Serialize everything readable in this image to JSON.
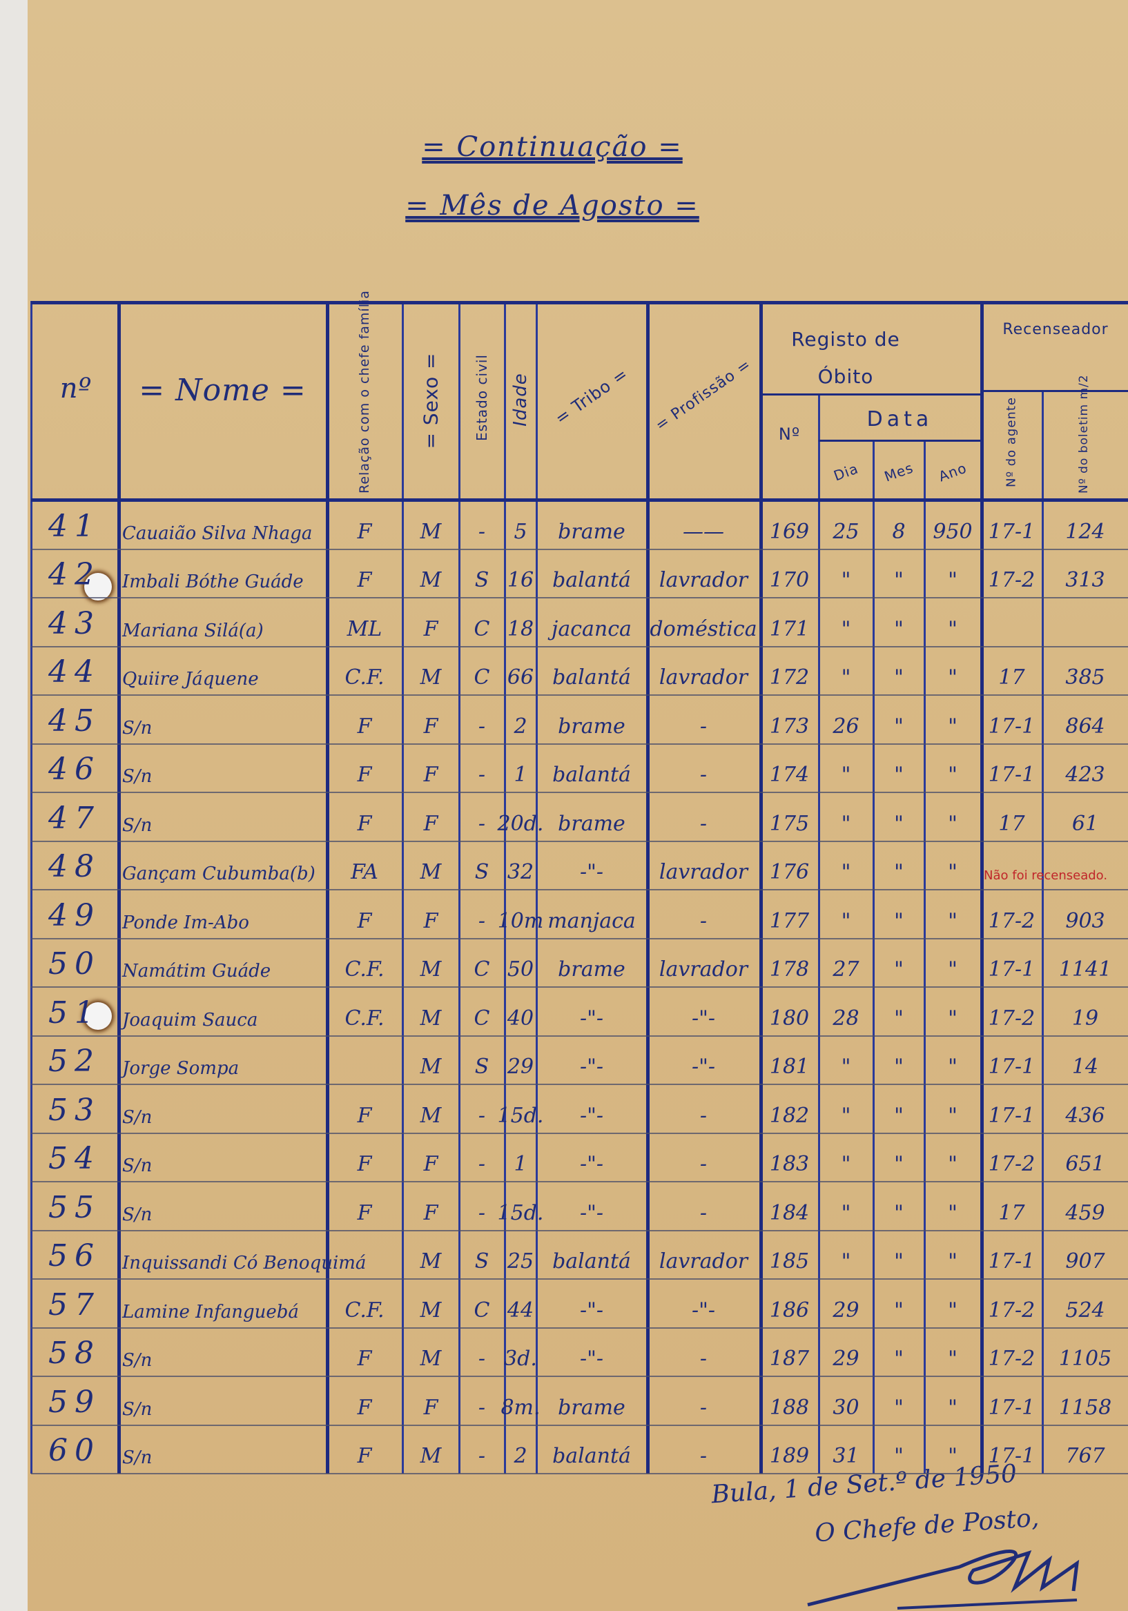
{
  "title": "= Continuação =",
  "subtitle": "= Mês de Agosto =",
  "headers": {
    "numero": "nº",
    "nome": "= Nome =",
    "relacao": "Relação com o chefe família",
    "sexo": "= Sexo =",
    "estado_civil": "Estado civil",
    "idade": "Idade",
    "tribo": "= Tribo =",
    "profissao": "= Profissão =",
    "registo_obito": "Registo de Óbito",
    "obito_numero": "Nº",
    "data": "Data",
    "dia": "Dia",
    "mes": "Mes",
    "ano": "Ano",
    "recenseador": "Recenseador",
    "agente": "Nº do agente",
    "boletim": "Nº do boletim m/2"
  },
  "rows": [
    {
      "n": "41",
      "cells": [
        "Cauaião Silva Nhaga",
        "F",
        "M",
        "-",
        "5",
        "brame",
        "——",
        "169",
        "25",
        "8",
        "950",
        "17-1",
        "124"
      ]
    },
    {
      "n": "42",
      "cells": [
        "Imbali Bóthe Guáde",
        "F",
        "M",
        "S",
        "16",
        "balantá",
        "lavrador",
        "170",
        "\"",
        "\"",
        "\"",
        "17-2",
        "313"
      ]
    },
    {
      "n": "43",
      "cells": [
        "Mariana Silá(a)",
        "ML",
        "F",
        "C",
        "18",
        "jacanca",
        "doméstica",
        "171",
        "\"",
        "\"",
        "\"",
        "",
        ""
      ]
    },
    {
      "n": "44",
      "cells": [
        "Quiire Jáquene",
        "C.F.",
        "M",
        "C",
        "66",
        "balantá",
        "lavrador",
        "172",
        "\"",
        "\"",
        "\"",
        "17",
        "385"
      ]
    },
    {
      "n": "45",
      "cells": [
        "S/n",
        "F",
        "F",
        "-",
        "2",
        "brame",
        "-",
        "173",
        "26",
        "\"",
        "\"",
        "17-1",
        "864"
      ]
    },
    {
      "n": "46",
      "cells": [
        "S/n",
        "F",
        "F",
        "-",
        "1",
        "balantá",
        "-",
        "174",
        "\"",
        "\"",
        "\"",
        "17-1",
        "423"
      ]
    },
    {
      "n": "47",
      "cells": [
        "S/n",
        "F",
        "F",
        "-",
        "20d.",
        "brame",
        "-",
        "175",
        "\"",
        "\"",
        "\"",
        "17",
        "61"
      ]
    },
    {
      "n": "48",
      "cells": [
        "Gançam Cubumba(b)",
        "FA",
        "M",
        "S",
        "32",
        "-\"-",
        "lavrador",
        "176",
        "\"",
        "\"",
        "\"",
        "",
        ""
      ],
      "note": "Não foi recenseado."
    },
    {
      "n": "49",
      "cells": [
        "Ponde Im-Abo",
        "F",
        "F",
        "-",
        "10m",
        "manjaca",
        "-",
        "177",
        "\"",
        "\"",
        "\"",
        "17-2",
        "903"
      ]
    },
    {
      "n": "50",
      "cells": [
        "Namátim Guáde",
        "C.F.",
        "M",
        "C",
        "50",
        "brame",
        "lavrador",
        "178",
        "27",
        "\"",
        "\"",
        "17-1",
        "1141"
      ]
    },
    {
      "n": "51",
      "cells": [
        "Joaquim Sauca",
        "C.F.",
        "M",
        "C",
        "40",
        "-\"-",
        "-\"-",
        "180",
        "28",
        "\"",
        "\"",
        "17-2",
        "19"
      ]
    },
    {
      "n": "52",
      "cells": [
        "Jorge Sompa",
        "",
        "M",
        "S",
        "29",
        "-\"-",
        "-\"-",
        "181",
        "\"",
        "\"",
        "\"",
        "17-1",
        "14"
      ]
    },
    {
      "n": "53",
      "cells": [
        "S/n",
        "F",
        "M",
        "-",
        "15d.",
        "-\"-",
        "-",
        "182",
        "\"",
        "\"",
        "\"",
        "17-1",
        "436"
      ]
    },
    {
      "n": "54",
      "cells": [
        "S/n",
        "F",
        "F",
        "-",
        "1",
        "-\"-",
        "-",
        "183",
        "\"",
        "\"",
        "\"",
        "17-2",
        "651"
      ]
    },
    {
      "n": "55",
      "cells": [
        "S/n",
        "F",
        "F",
        "-",
        "15d.",
        "-\"-",
        "-",
        "184",
        "\"",
        "\"",
        "\"",
        "17",
        "459"
      ]
    },
    {
      "n": "56",
      "cells": [
        "Inquissandi Có Benoquimá",
        "",
        "M",
        "S",
        "25",
        "balantá",
        "lavrador",
        "185",
        "\"",
        "\"",
        "\"",
        "17-1",
        "907"
      ]
    },
    {
      "n": "57",
      "cells": [
        "Lamine Infanguebá",
        "C.F.",
        "M",
        "C",
        "44",
        "-\"-",
        "-\"-",
        "186",
        "29",
        "\"",
        "\"",
        "17-2",
        "524"
      ]
    },
    {
      "n": "58",
      "cells": [
        "S/n",
        "F",
        "M",
        "-",
        "3d.",
        "-\"-",
        "-",
        "187",
        "29",
        "\"",
        "\"",
        "17-2",
        "1105"
      ]
    },
    {
      "n": "59",
      "cells": [
        "S/n",
        "F",
        "F",
        "-",
        "8m.",
        "brame",
        "-",
        "188",
        "30",
        "\"",
        "\"",
        "17-1",
        "1158"
      ]
    },
    {
      "n": "60",
      "cells": [
        "S/n",
        "F",
        "M",
        "-",
        "2",
        "balantá",
        "-",
        "189",
        "31",
        "\"",
        "\"",
        "17-1",
        "767"
      ]
    }
  ],
  "footer": {
    "place_date": "Bula, 1 de Set.º de 1950",
    "signatory": "O Chefe de Posto,"
  },
  "colors": {
    "ink": "#1f2c78",
    "paper": "#d8b985",
    "red_ink": "#c0262a"
  }
}
